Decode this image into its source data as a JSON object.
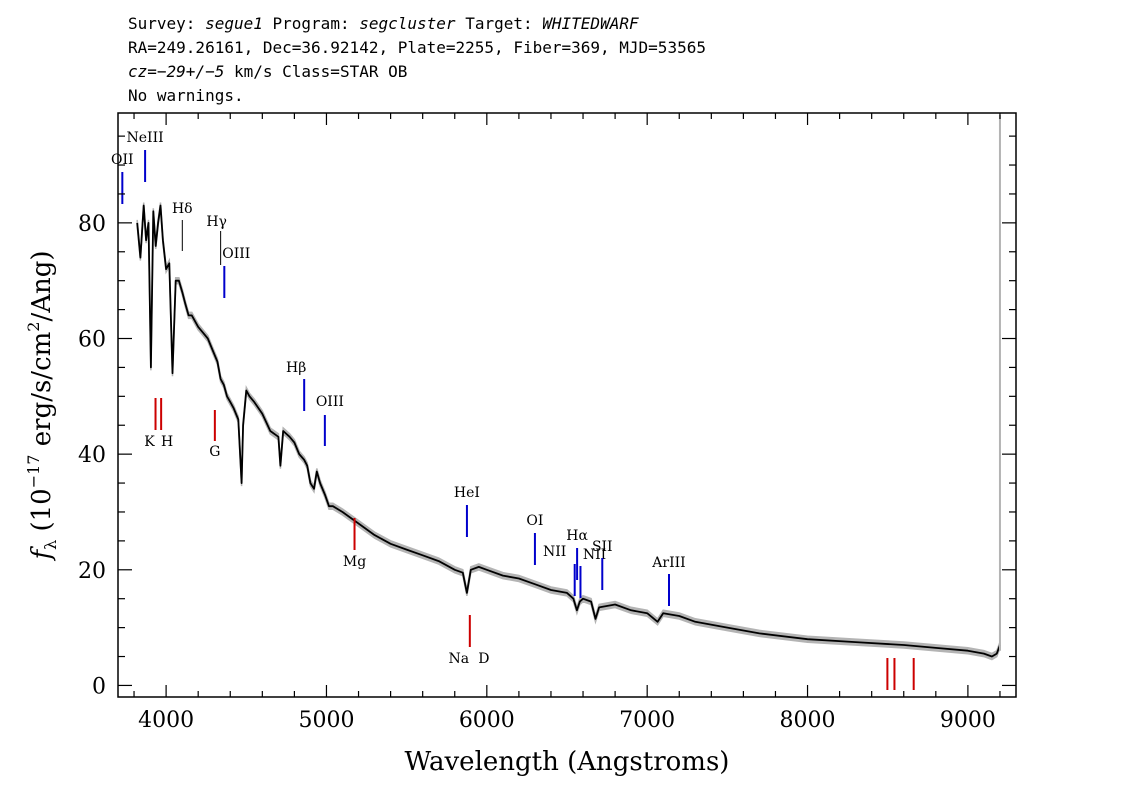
{
  "header": {
    "survey_label": "Survey:",
    "survey": "segue1",
    "program_label": "Program:",
    "program": "segcluster",
    "target_label": "Target:",
    "target": "WHITEDWARF",
    "line2": "RA=249.26161, Dec=36.92142, Plate=2255, Fiber=369, MJD=53565",
    "cz_label": "cz=",
    "cz_value": "−29+/−5",
    "cz_rest": " km/s Class=STAR OB",
    "warnings": "No warnings."
  },
  "chart_data": {
    "type": "line",
    "title": "",
    "xlabel": "Wavelength (Angstroms)",
    "ylabel": "f_λ (10^-17 erg/s/cm^2/Ang)",
    "ylabel_parts": {
      "f": "f",
      "sub": "λ",
      "a": " (10",
      "exp1": "−17",
      "b": " erg/s/cm",
      "exp2": "2",
      "c": "/Ang)"
    },
    "xlim": [
      3700,
      9300
    ],
    "ylim": [
      -2,
      99
    ],
    "xticks": [
      4000,
      5000,
      6000,
      7000,
      8000,
      9000
    ],
    "yticks": [
      0,
      20,
      40,
      60,
      80
    ],
    "grid": false,
    "colors": {
      "spectrum": "#000000",
      "error_band": "#b4b4b4",
      "emission": "#0000cc",
      "absorption": "#cc0000"
    },
    "spectrum": {
      "name": "flux",
      "x": [
        3820,
        3840,
        3860,
        3875,
        3890,
        3905,
        3920,
        3935,
        3950,
        3965,
        3980,
        4000,
        4020,
        4040,
        4060,
        4080,
        4101,
        4120,
        4140,
        4160,
        4180,
        4200,
        4230,
        4260,
        4290,
        4320,
        4340,
        4360,
        4380,
        4400,
        4420,
        4450,
        4471,
        4480,
        4500,
        4520,
        4550,
        4600,
        4650,
        4700,
        4713,
        4730,
        4770,
        4800,
        4830,
        4861,
        4880,
        4900,
        4922,
        4940,
        4960,
        4990,
        5016,
        5040,
        5100,
        5200,
        5300,
        5400,
        5500,
        5600,
        5700,
        5800,
        5850,
        5876,
        5900,
        5950,
        6000,
        6100,
        6200,
        6300,
        6400,
        6500,
        6540,
        6562,
        6580,
        6600,
        6650,
        6678,
        6700,
        6800,
        6900,
        7000,
        7065,
        7100,
        7200,
        7300,
        7500,
        7700,
        8000,
        8300,
        8600,
        8800,
        9000,
        9100,
        9150,
        9180,
        9200
      ],
      "y": [
        80,
        74,
        83,
        77,
        80,
        55,
        82,
        76,
        80,
        83,
        77,
        72,
        73,
        54,
        70,
        70,
        68,
        66,
        64,
        64,
        63,
        62,
        61,
        60,
        58,
        56,
        53,
        52,
        50,
        49,
        48,
        46,
        35,
        45,
        51,
        50,
        49,
        47,
        44,
        43,
        38,
        44,
        43,
        42,
        40,
        39,
        38,
        35,
        34,
        37,
        35,
        33,
        31,
        31,
        30,
        28,
        26,
        24.5,
        23.5,
        22.5,
        21.5,
        20,
        19.5,
        16,
        20,
        20.5,
        20,
        19,
        18.5,
        17.5,
        16.5,
        16,
        15,
        13,
        14.5,
        15,
        14.5,
        11.5,
        13.5,
        14,
        13,
        12.5,
        11,
        12.5,
        12,
        11,
        10,
        9,
        8,
        7.5,
        7,
        6.5,
        6,
        5.5,
        5,
        5.5,
        7
      ]
    },
    "line_labels": [
      {
        "label": "OII",
        "wave": 3727,
        "kind": "emission"
      },
      {
        "label": "NeIII",
        "wave": 3869,
        "kind": "emission"
      },
      {
        "label": "Hδ",
        "wave": 4101,
        "kind": "balmer"
      },
      {
        "label": "Hγ",
        "wave": 4340,
        "kind": "balmer"
      },
      {
        "label": "OIII",
        "wave": 4363,
        "kind": "emission"
      },
      {
        "label": "Hβ",
        "wave": 4861,
        "kind": "emission"
      },
      {
        "label": "OIII",
        "wave": 4990,
        "kind": "emission"
      },
      {
        "label": "HeI",
        "wave": 5876,
        "kind": "emission"
      },
      {
        "label": "OI",
        "wave": 6300,
        "kind": "emission"
      },
      {
        "label": "NII",
        "wave": 6548,
        "kind": "emission"
      },
      {
        "label": "Hα",
        "wave": 6563,
        "kind": "emission"
      },
      {
        "label": "NII",
        "wave": 6584,
        "kind": "emission"
      },
      {
        "label": "SII",
        "wave": 6720,
        "kind": "emission"
      },
      {
        "label": "ArIII",
        "wave": 7136,
        "kind": "emission"
      },
      {
        "label": "K",
        "wave": 3934,
        "kind": "absorption"
      },
      {
        "label": "H",
        "wave": 3969,
        "kind": "absorption"
      },
      {
        "label": "G",
        "wave": 4304,
        "kind": "absorption"
      },
      {
        "label": "Mg",
        "wave": 5175,
        "kind": "absorption"
      },
      {
        "label": "Na",
        "wave": 5894,
        "kind": "absorption"
      },
      {
        "label": "D",
        "wave": 5894,
        "kind": "absorption"
      },
      {
        "label": "",
        "wave": 8498,
        "kind": "absorption"
      },
      {
        "label": "",
        "wave": 8542,
        "kind": "absorption"
      },
      {
        "label": "",
        "wave": 8662,
        "kind": "absorption"
      }
    ]
  }
}
